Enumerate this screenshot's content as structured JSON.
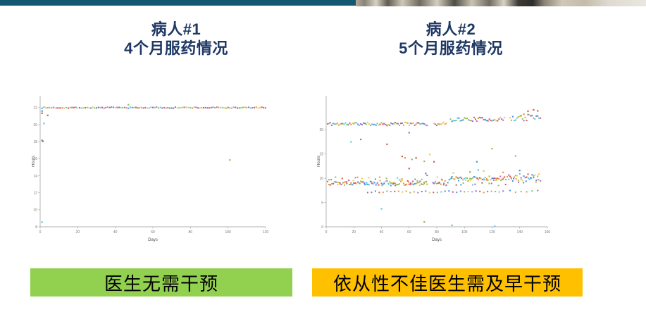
{
  "colors": {
    "page_bg": "#ffffff",
    "top_bar_teal": "#15576f",
    "title_navy": "#1f3864",
    "banner_green": "#92d050",
    "banner_amber": "#ffc000",
    "banner_text": "#000000",
    "axis": "#999999",
    "tick_text": "#777777",
    "axis_label_text": "#555555"
  },
  "point_palette": {
    "blue": "#4a90d9",
    "orange": "#f0913a",
    "yellow": "#f0c44b",
    "purple": "#a66bbe",
    "green": "#8cc152",
    "cyan": "#5bc8e8",
    "red": "#d95352"
  },
  "panels": [
    {
      "id": "patient1",
      "title_line1": "病人#1",
      "title_line2": "4个月服药情况",
      "banner": {
        "label": "医生无需干预",
        "color": "#92d050"
      }
    },
    {
      "id": "patient2",
      "title_line1": "病人#2",
      "title_line2": "5个月服药情况",
      "banner": {
        "label": "依从性不佳医生需及早干预",
        "color": "#ffc000"
      }
    }
  ],
  "chart_data": [
    {
      "type": "scatter",
      "panel": "patient1",
      "xlabel": "Days",
      "ylabel": "Hours",
      "xlim": [
        0,
        120
      ],
      "ylim": [
        8,
        23.4
      ],
      "xticks": [
        0,
        20,
        40,
        60,
        80,
        100,
        120
      ],
      "yticks": [
        8,
        10,
        12,
        14,
        16,
        18,
        20,
        22
      ],
      "grid": false,
      "seed": 7,
      "bands": [
        {
          "name": "steady-22h-dosing",
          "day_start": 1,
          "day_end": 120,
          "day_step": 1,
          "hours": 22,
          "jitter": 0.07
        }
      ],
      "outliers": [
        [
          1,
          21.6,
          "blue"
        ],
        [
          1,
          21.35,
          "red"
        ],
        [
          4,
          21.1,
          "red"
        ],
        [
          2,
          20.15,
          "cyan"
        ],
        [
          1,
          18.15,
          "red"
        ],
        [
          1.5,
          18.05,
          "blue"
        ],
        [
          1,
          8.55,
          "cyan"
        ],
        [
          47,
          22.35,
          "green"
        ],
        [
          101,
          15.85,
          "green"
        ]
      ]
    },
    {
      "type": "scatter",
      "panel": "patient2",
      "xlabel": "Days",
      "ylabel": "Hours",
      "xlim": [
        0,
        160
      ],
      "ylim": [
        0,
        27
      ],
      "xticks": [
        0,
        20,
        40,
        60,
        80,
        100,
        120,
        140,
        160
      ],
      "yticks": [
        0,
        5,
        10,
        15,
        20
      ],
      "grid": false,
      "seed": 11,
      "bands": [
        {
          "name": "upper-21h-phase1",
          "day_start": 1,
          "day_end": 87,
          "day_step": 1,
          "hours": 21.2,
          "jitter": 0.35,
          "skip": [
            74,
            77
          ]
        },
        {
          "name": "upper-22h-phase2",
          "day_start": 90,
          "day_end": 129,
          "day_step": 1,
          "hours": 22.15,
          "jitter": 0.4
        },
        {
          "name": "upper-22h-phase3",
          "day_start": 133,
          "day_end": 155,
          "day_step": 1,
          "hours": 22.5,
          "jitter": 0.75
        },
        {
          "name": "lower-9h-phase1",
          "day_start": 1,
          "day_end": 88,
          "day_step": 1,
          "hours": 9.1,
          "jitter": 0.5,
          "skip": [
            74,
            77
          ]
        },
        {
          "name": "lower-9h-phase1-extra",
          "day_start": 2,
          "day_end": 88,
          "day_step": 1.6,
          "hours": 9.4,
          "jitter": 0.9,
          "skip": [
            74,
            77
          ]
        },
        {
          "name": "lower-10h-phase2",
          "day_start": 89,
          "day_end": 130,
          "day_step": 1,
          "hours": 10.0,
          "jitter": 0.45
        },
        {
          "name": "lower-9h-phase2-extra",
          "day_start": 89,
          "day_end": 130,
          "day_step": 1.7,
          "hours": 9.3,
          "jitter": 0.8
        },
        {
          "name": "lower-10h-phase3",
          "day_start": 131,
          "day_end": 155,
          "day_step": 1,
          "hours": 10.1,
          "jitter": 0.8
        },
        {
          "name": "lower-10h-phase3-extra",
          "day_start": 132,
          "day_end": 155,
          "day_step": 1.8,
          "hours": 9.8,
          "jitter": 1.1
        },
        {
          "name": "7h-sub-band",
          "day_start": 30,
          "day_end": 130,
          "day_step": 2.8,
          "hours": 7.2,
          "jitter": 0.18
        },
        {
          "name": "7h-sub-band-tail",
          "day_start": 133,
          "day_end": 153,
          "day_step": 4,
          "hours": 7.3,
          "jitter": 0.2
        }
      ],
      "outliers": [
        [
          18,
          17.5,
          "cyan"
        ],
        [
          25,
          18,
          "blue"
        ],
        [
          44,
          17,
          "red"
        ],
        [
          60,
          19.4,
          "blue"
        ],
        [
          60,
          12,
          "red"
        ],
        [
          55,
          14.5,
          "red"
        ],
        [
          57,
          14.2,
          "orange"
        ],
        [
          62,
          13.9,
          "green"
        ],
        [
          65,
          14.2,
          "red"
        ],
        [
          71,
          13.5,
          "green"
        ],
        [
          75,
          14.9,
          "yellow"
        ],
        [
          78,
          13.4,
          "red"
        ],
        [
          72,
          11,
          "blue"
        ],
        [
          73,
          10.6,
          "purple"
        ],
        [
          92,
          11.1,
          "yellow"
        ],
        [
          104,
          11.3,
          "green"
        ],
        [
          109,
          13.4,
          "blue"
        ],
        [
          110,
          11.7,
          "cyan"
        ],
        [
          114,
          11.5,
          "yellow"
        ],
        [
          120,
          16.1,
          "green"
        ],
        [
          128,
          11.2,
          "orange"
        ],
        [
          137,
          14.6,
          "cyan"
        ],
        [
          140,
          11.6,
          "blue"
        ],
        [
          143,
          23.2,
          "orange"
        ],
        [
          146,
          23.8,
          "red"
        ],
        [
          150,
          24.1,
          "red"
        ],
        [
          153,
          23.9,
          "red"
        ],
        [
          40,
          3.7,
          "cyan"
        ],
        [
          71,
          1.0,
          "green"
        ],
        [
          91,
          0.3,
          "cyan"
        ],
        [
          122,
          0.1,
          "cyan"
        ]
      ]
    }
  ]
}
